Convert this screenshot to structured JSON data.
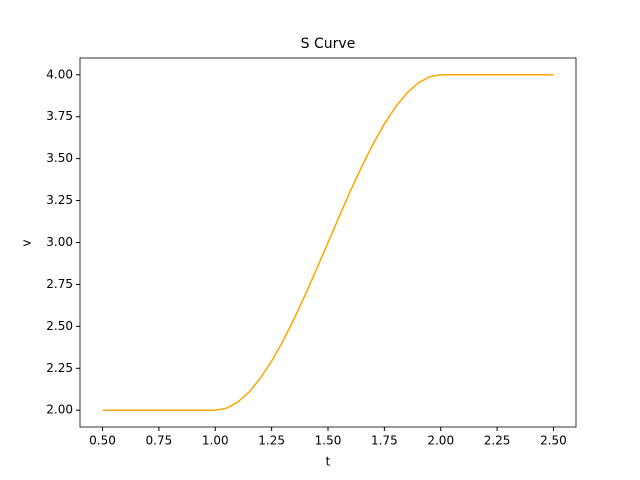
{
  "chart_data": {
    "type": "line",
    "title": "S Curve",
    "xlabel": "t",
    "ylabel": "v",
    "x": [
      0.5,
      0.55,
      0.6,
      0.65,
      0.7,
      0.75,
      0.8,
      0.85,
      0.9,
      0.95,
      1.0,
      1.05,
      1.1,
      1.15,
      1.2,
      1.25,
      1.3,
      1.35,
      1.4,
      1.45,
      1.5,
      1.55,
      1.6,
      1.65,
      1.7,
      1.75,
      1.8,
      1.85,
      1.9,
      1.95,
      2.0,
      2.05,
      2.1,
      2.15,
      2.2,
      2.25,
      2.3,
      2.35,
      2.4,
      2.45,
      2.5
    ],
    "series": [
      {
        "color": "#ffa500",
        "values": [
          2,
          2,
          2,
          2,
          2,
          2,
          2,
          2,
          2,
          2,
          2.0,
          2.012,
          2.049,
          2.109,
          2.191,
          2.293,
          2.412,
          2.546,
          2.691,
          2.844,
          3.0,
          3.156,
          3.309,
          3.454,
          3.588,
          3.707,
          3.809,
          3.891,
          3.951,
          3.988,
          4.0,
          4,
          4,
          4,
          4,
          4,
          4,
          4,
          4,
          4,
          4
        ]
      }
    ],
    "xlim": [
      0.4,
      2.6
    ],
    "ylim": [
      1.9,
      4.1
    ],
    "xticks": [
      {
        "value": 0.5,
        "label": "0.50"
      },
      {
        "value": 0.75,
        "label": "0.75"
      },
      {
        "value": 1,
        "label": "1.00"
      },
      {
        "value": 1.25,
        "label": "1.25"
      },
      {
        "value": 1.5,
        "label": "1.50"
      },
      {
        "value": 1.75,
        "label": "1.75"
      },
      {
        "value": 2,
        "label": "2.00"
      },
      {
        "value": 2.25,
        "label": "2.25"
      },
      {
        "value": 2.5,
        "label": "2.50"
      }
    ],
    "yticks": [
      {
        "value": 2,
        "label": "2.00"
      },
      {
        "value": 2.25,
        "label": "2.25"
      },
      {
        "value": 2.5,
        "label": "2.50"
      },
      {
        "value": 2.75,
        "label": "2.75"
      },
      {
        "value": 3,
        "label": "3.00"
      },
      {
        "value": 3.25,
        "label": "3.25"
      },
      {
        "value": 3.5,
        "label": "3.50"
      },
      {
        "value": 3.75,
        "label": "3.75"
      },
      {
        "value": 4,
        "label": "4.00"
      }
    ]
  }
}
